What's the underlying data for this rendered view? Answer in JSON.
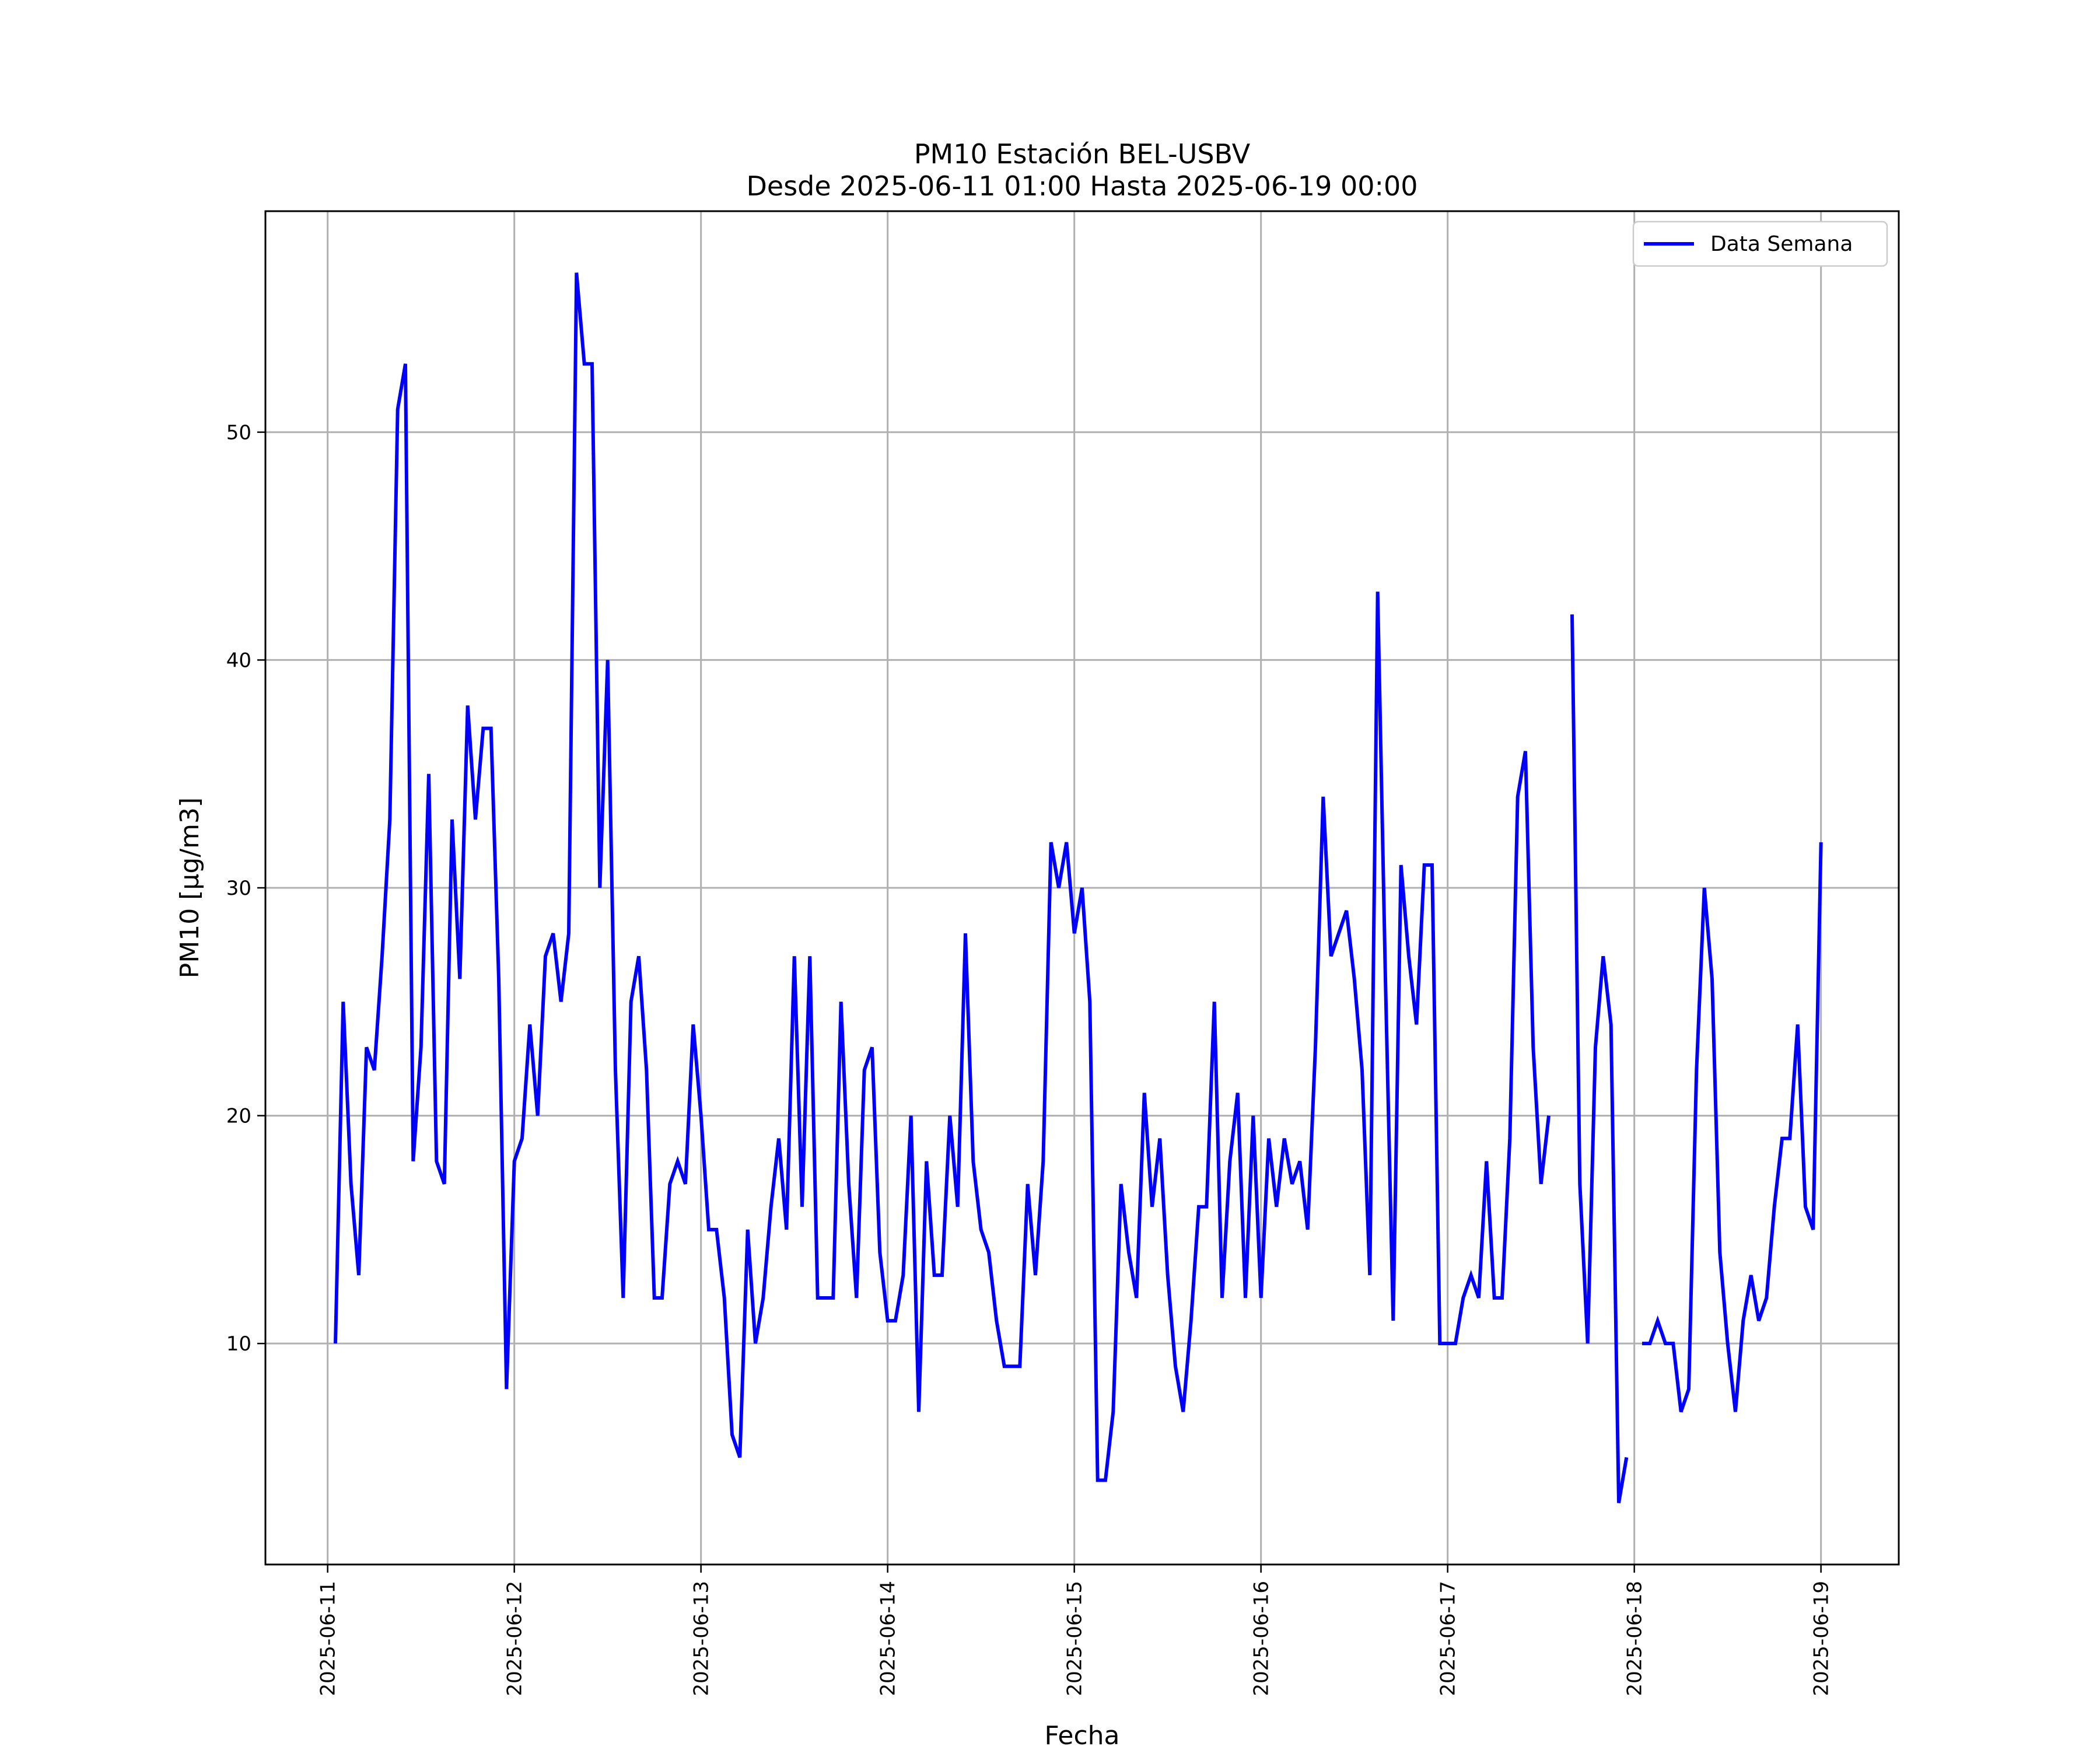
{
  "chart_data": {
    "type": "line",
    "title": "PM10 Estación BEL-USBV",
    "subtitle": "Desde 2025-06-11 01:00 Hasta 2025-06-19 00:00",
    "xlabel": "Fecha",
    "ylabel": "PM10 [μg/m3]",
    "x_ticks": [
      "2025-06-11",
      "2025-06-12",
      "2025-06-13",
      "2025-06-14",
      "2025-06-15",
      "2025-06-16",
      "2025-06-17",
      "2025-06-18",
      "2025-06-19"
    ],
    "y_ticks": [
      10,
      20,
      30,
      40,
      50
    ],
    "xlim": [
      "2025-06-10 16:00",
      "2025-06-19 10:00"
    ],
    "ylim": [
      0.3,
      59.7
    ],
    "grid": true,
    "legend_position": "top-right",
    "series": [
      {
        "name": "Data Semana",
        "color": "#0000ff",
        "x": [
          "2025-06-11 01:00",
          "2025-06-11 02:00",
          "2025-06-11 03:00",
          "2025-06-11 04:00",
          "2025-06-11 05:00",
          "2025-06-11 06:00",
          "2025-06-11 07:00",
          "2025-06-11 08:00",
          "2025-06-11 09:00",
          "2025-06-11 10:00",
          "2025-06-11 11:00",
          "2025-06-11 12:00",
          "2025-06-11 13:00",
          "2025-06-11 14:00",
          "2025-06-11 15:00",
          "2025-06-11 16:00",
          "2025-06-11 17:00",
          "2025-06-11 18:00",
          "2025-06-11 19:00",
          "2025-06-11 20:00",
          "2025-06-11 21:00",
          "2025-06-11 22:00",
          "2025-06-11 23:00",
          "2025-06-12 00:00",
          "2025-06-12 01:00",
          "2025-06-12 02:00",
          "2025-06-12 03:00",
          "2025-06-12 04:00",
          "2025-06-12 05:00",
          "2025-06-12 06:00",
          "2025-06-12 07:00",
          "2025-06-12 08:00",
          "2025-06-12 09:00",
          "2025-06-12 10:00",
          "2025-06-12 11:00",
          "2025-06-12 12:00",
          "2025-06-12 13:00",
          "2025-06-12 14:00",
          "2025-06-12 15:00",
          "2025-06-12 16:00",
          "2025-06-12 17:00",
          "2025-06-12 18:00",
          "2025-06-12 19:00",
          "2025-06-12 20:00",
          "2025-06-12 21:00",
          "2025-06-12 22:00",
          "2025-06-12 23:00",
          "2025-06-13 00:00",
          "2025-06-13 01:00",
          "2025-06-13 02:00",
          "2025-06-13 03:00",
          "2025-06-13 04:00",
          "2025-06-13 05:00",
          "2025-06-13 06:00",
          "2025-06-13 07:00",
          "2025-06-13 08:00",
          "2025-06-13 09:00",
          "2025-06-13 10:00",
          "2025-06-13 11:00",
          "2025-06-13 12:00",
          "2025-06-13 13:00",
          "2025-06-13 14:00",
          "2025-06-13 15:00",
          "2025-06-13 16:00",
          "2025-06-13 17:00",
          "2025-06-13 18:00",
          "2025-06-13 19:00",
          "2025-06-13 20:00",
          "2025-06-13 21:00",
          "2025-06-13 22:00",
          "2025-06-13 23:00",
          "2025-06-14 00:00",
          "2025-06-14 01:00",
          "2025-06-14 02:00",
          "2025-06-14 03:00",
          "2025-06-14 04:00",
          "2025-06-14 05:00",
          "2025-06-14 06:00",
          "2025-06-14 07:00",
          "2025-06-14 08:00",
          "2025-06-14 09:00",
          "2025-06-14 10:00",
          "2025-06-14 11:00",
          "2025-06-14 12:00",
          "2025-06-14 13:00",
          "2025-06-14 14:00",
          "2025-06-14 15:00",
          "2025-06-14 16:00",
          "2025-06-14 17:00",
          "2025-06-14 18:00",
          "2025-06-14 19:00",
          "2025-06-14 20:00",
          "2025-06-14 21:00",
          "2025-06-14 22:00",
          "2025-06-14 23:00",
          "2025-06-15 00:00",
          "2025-06-15 01:00",
          "2025-06-15 02:00",
          "2025-06-15 03:00",
          "2025-06-15 04:00",
          "2025-06-15 05:00",
          "2025-06-15 06:00",
          "2025-06-15 07:00",
          "2025-06-15 08:00",
          "2025-06-15 09:00",
          "2025-06-15 10:00",
          "2025-06-15 11:00",
          "2025-06-15 12:00",
          "2025-06-15 13:00",
          "2025-06-15 14:00",
          "2025-06-15 15:00",
          "2025-06-15 16:00",
          "2025-06-15 17:00",
          "2025-06-15 18:00",
          "2025-06-15 19:00",
          "2025-06-15 20:00",
          "2025-06-15 21:00",
          "2025-06-15 22:00",
          "2025-06-15 23:00",
          "2025-06-16 00:00",
          "2025-06-16 01:00",
          "2025-06-16 02:00",
          "2025-06-16 03:00",
          "2025-06-16 04:00",
          "2025-06-16 05:00",
          "2025-06-16 06:00",
          "2025-06-16 07:00",
          "2025-06-16 08:00",
          "2025-06-16 09:00",
          "2025-06-16 10:00",
          "2025-06-16 11:00",
          "2025-06-16 12:00",
          "2025-06-16 13:00",
          "2025-06-16 14:00",
          "2025-06-16 15:00",
          "2025-06-16 16:00",
          "2025-06-16 17:00",
          "2025-06-16 18:00",
          "2025-06-16 19:00",
          "2025-06-16 20:00",
          "2025-06-16 21:00",
          "2025-06-16 22:00",
          "2025-06-16 23:00",
          "2025-06-17 00:00",
          "2025-06-17 01:00",
          "2025-06-17 02:00",
          "2025-06-17 03:00",
          "2025-06-17 04:00",
          "2025-06-17 05:00",
          "2025-06-17 06:00",
          "2025-06-17 07:00",
          "2025-06-17 08:00",
          "2025-06-17 09:00",
          "2025-06-17 10:00",
          "2025-06-17 11:00",
          "2025-06-17 12:00",
          "2025-06-17 13:00",
          "2025-06-17 14:00",
          "2025-06-17 15:00",
          "2025-06-17 16:00",
          "2025-06-17 17:00",
          "2025-06-17 18:00",
          "2025-06-17 19:00",
          "2025-06-17 20:00",
          "2025-06-17 21:00",
          "2025-06-17 22:00",
          "2025-06-17 23:00",
          "2025-06-18 00:00",
          "2025-06-18 01:00",
          "2025-06-18 02:00",
          "2025-06-18 03:00",
          "2025-06-18 04:00",
          "2025-06-18 05:00",
          "2025-06-18 06:00",
          "2025-06-18 07:00",
          "2025-06-18 08:00",
          "2025-06-18 09:00",
          "2025-06-18 10:00",
          "2025-06-18 11:00",
          "2025-06-18 12:00",
          "2025-06-18 13:00",
          "2025-06-18 14:00",
          "2025-06-18 15:00",
          "2025-06-18 16:00",
          "2025-06-18 17:00",
          "2025-06-18 18:00",
          "2025-06-18 19:00",
          "2025-06-18 20:00",
          "2025-06-18 21:00",
          "2025-06-18 22:00",
          "2025-06-18 23:00",
          "2025-06-19 00:00"
        ],
        "values": [
          10,
          25,
          17,
          13,
          23,
          22,
          27,
          33,
          51,
          53,
          18,
          23,
          35,
          18,
          17,
          33,
          26,
          38,
          33,
          37,
          37,
          26,
          8,
          18,
          19,
          24,
          20,
          27,
          28,
          25,
          28,
          57,
          53,
          53,
          30,
          40,
          22,
          12,
          25,
          27,
          22,
          12,
          12,
          17,
          18,
          17,
          24,
          20,
          15,
          15,
          12,
          6,
          5,
          15,
          10,
          12,
          16,
          19,
          15,
          27,
          16,
          27,
          12,
          12,
          12,
          25,
          17,
          12,
          22,
          23,
          14,
          11,
          11,
          13,
          20,
          7,
          18,
          13,
          13,
          20,
          16,
          28,
          18,
          15,
          14,
          11,
          9,
          9,
          9,
          17,
          13,
          18,
          32,
          30,
          32,
          28,
          30,
          25,
          4,
          4,
          7,
          17,
          14,
          12,
          21,
          16,
          19,
          13,
          9,
          7,
          11,
          16,
          16,
          25,
          12,
          18,
          21,
          12,
          20,
          12,
          19,
          16,
          19,
          17,
          18,
          15,
          23,
          34,
          27,
          28,
          29,
          26,
          22,
          13,
          43,
          26,
          11,
          31,
          27,
          24,
          31,
          31,
          10,
          10,
          10,
          12,
          13,
          12,
          18,
          12,
          12,
          19,
          34,
          36,
          23,
          17,
          20,
          null,
          null,
          42,
          17,
          10,
          23,
          27,
          24,
          3,
          5,
          null,
          10,
          10,
          11,
          10,
          10,
          7,
          8,
          22,
          30,
          26,
          14,
          10,
          7,
          11,
          13,
          11,
          12,
          16,
          19,
          19,
          24,
          16,
          15,
          32
        ]
      }
    ]
  }
}
